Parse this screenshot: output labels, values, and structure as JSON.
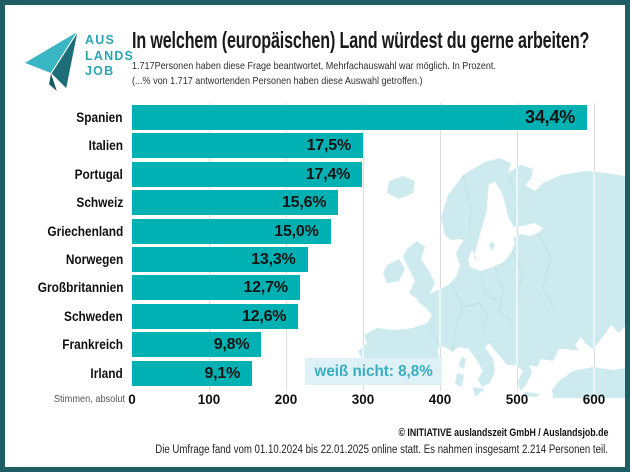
{
  "brand": {
    "logo_lines": [
      "AUS",
      "LANDS",
      "JOB"
    ],
    "logo_color": "#2ba4b4"
  },
  "header": {
    "title": "In welchem (europäischen) Land würdest du gerne arbeiten?",
    "subtitle_line1": "1.717Personen haben diese Frage beantwortet, Mehrfachauswahl war möglich. In Prozent.",
    "subtitle_line2": "(...% von 1.717 antwortenden Personen haben diese Auswahl getroffen.)"
  },
  "chart_data": {
    "type": "bar",
    "orientation": "horizontal",
    "title": "In welchem (europäischen) Land würdest du gerne arbeiten?",
    "categories": [
      "Spanien",
      "Italien",
      "Portugal",
      "Schweiz",
      "Griechenland",
      "Norwegen",
      "Großbritannien",
      "Schweden",
      "Frankreich",
      "Irland"
    ],
    "values_percent": [
      34.4,
      17.5,
      17.4,
      15.6,
      15.0,
      13.3,
      12.7,
      12.6,
      9.8,
      9.1
    ],
    "percent_labels": [
      "34,4%",
      "17,5%",
      "17,4%",
      "15,6%",
      "15,0%",
      "13,3%",
      "12,7%",
      "12,6%",
      "9,8%",
      "9,1%"
    ],
    "values_absolute_votes": [
      591,
      300,
      299,
      268,
      258,
      228,
      218,
      216,
      168,
      156
    ],
    "respondents_question": 1717,
    "x_axis": {
      "label": "Stimmen, absolut",
      "ticks": [
        0,
        100,
        200,
        300,
        400,
        500,
        600
      ],
      "xlim": [
        0,
        600
      ],
      "grid": true
    },
    "annotation": "weiß nicht: 8,8%",
    "legend": "none",
    "bar_color": "#00b1b4",
    "map_color": "#cdeaee"
  },
  "footer": {
    "copyright": "© INITIATIVE auslandszeit GmbH / Auslandsjob.de",
    "survey_note": "Die Umfrage fand vom 01.10.2024 bis 22.01.2025 online statt. Es nahmen insgesamt 2.214 Personen teil."
  },
  "colors": {
    "frame": "#1e5d64",
    "bar": "#00b1b4",
    "map": "#cdeaee",
    "annotation_bg": "#ddf1f6",
    "annotation_text": "#3aadc0",
    "logo_light": "#3ab5c4",
    "logo_dark": "#1d6e78"
  }
}
